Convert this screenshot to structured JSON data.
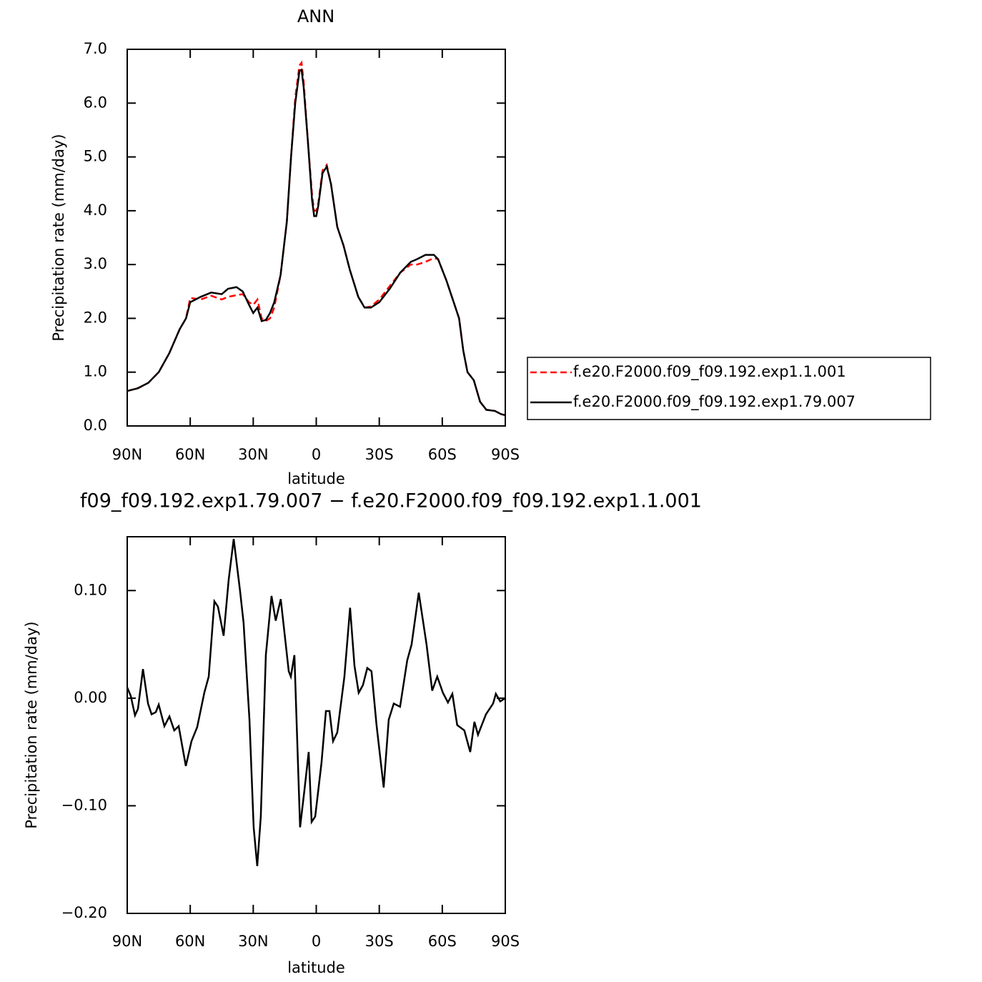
{
  "chart_data": [
    {
      "type": "line",
      "title": "ANN",
      "xlabel": "latitude",
      "ylabel": "Precipitation rate (mm/day)",
      "x": [
        90,
        85,
        80,
        75,
        70,
        65,
        62,
        60,
        55,
        50,
        45,
        42,
        38,
        35,
        32,
        30,
        28,
        26,
        24,
        22,
        20,
        17,
        14,
        12,
        10,
        8,
        7,
        6,
        4,
        2,
        1,
        0,
        -1,
        -3,
        -5,
        -7,
        -10,
        -13,
        -16,
        -20,
        -23,
        -26,
        -30,
        -35,
        -40,
        -45,
        -48,
        -52,
        -56,
        -58,
        -62,
        -65,
        -68,
        -70,
        -72,
        -75,
        -78,
        -81,
        -85,
        -88,
        -90
      ],
      "series": [
        {
          "name": "f.e20.F2000.f09_f09.192.exp1.1.001",
          "color": "#ff0000",
          "linestyle": "dashed",
          "values": [
            0.65,
            0.7,
            0.8,
            1.0,
            1.35,
            1.8,
            2.0,
            2.38,
            2.35,
            2.42,
            2.35,
            2.4,
            2.43,
            2.45,
            2.3,
            2.25,
            2.35,
            2.0,
            1.95,
            2.0,
            2.2,
            2.8,
            3.8,
            5.0,
            6.1,
            6.7,
            6.75,
            6.4,
            5.3,
            4.3,
            4.0,
            4.0,
            4.15,
            4.75,
            4.85,
            4.5,
            3.7,
            3.35,
            2.9,
            2.4,
            2.2,
            2.22,
            2.35,
            2.6,
            2.85,
            3.0,
            3.0,
            3.05,
            3.12,
            3.1,
            2.7,
            2.35,
            2.0,
            1.4,
            1.0,
            0.85,
            0.45,
            0.3,
            0.28,
            0.22,
            0.2
          ]
        },
        {
          "name": "f.e20.F2000.f09_f09.192.exp1.79.007",
          "color": "#000000",
          "linestyle": "solid",
          "values": [
            0.65,
            0.7,
            0.8,
            1.0,
            1.35,
            1.8,
            2.0,
            2.3,
            2.4,
            2.48,
            2.45,
            2.55,
            2.58,
            2.5,
            2.25,
            2.1,
            2.2,
            1.95,
            1.97,
            2.1,
            2.3,
            2.8,
            3.8,
            5.0,
            6.0,
            6.6,
            6.62,
            6.3,
            5.3,
            4.2,
            3.9,
            3.9,
            4.1,
            4.7,
            4.82,
            4.5,
            3.7,
            3.35,
            2.9,
            2.4,
            2.2,
            2.2,
            2.3,
            2.55,
            2.85,
            3.05,
            3.1,
            3.18,
            3.18,
            3.1,
            2.7,
            2.35,
            2.0,
            1.4,
            1.0,
            0.85,
            0.45,
            0.3,
            0.28,
            0.22,
            0.2
          ]
        }
      ],
      "xlim": [
        90,
        -90
      ],
      "xticks": [
        {
          "value": 90,
          "label": "90N"
        },
        {
          "value": 60,
          "label": "60N"
        },
        {
          "value": 30,
          "label": "30N"
        },
        0,
        {
          "value": -30,
          "label": "30S"
        },
        {
          "value": -60,
          "label": "60S"
        },
        {
          "value": -90,
          "label": "90S"
        }
      ],
      "ylim": [
        0,
        7
      ],
      "yticks": [
        {
          "value": 0,
          "label": "0.0"
        },
        {
          "value": 1,
          "label": "1.0"
        },
        {
          "value": 2,
          "label": "2.0"
        },
        {
          "value": 3,
          "label": "3.0"
        },
        {
          "value": 4,
          "label": "4.0"
        },
        {
          "value": 5,
          "label": "5.0"
        },
        {
          "value": 6,
          "label": "6.0"
        },
        {
          "value": 7,
          "label": "7.0"
        }
      ],
      "legend": "right"
    },
    {
      "type": "line",
      "title": "f09_f09.192.exp1.79.007 − f.e20.F2000.f09_f09.192.exp1.1.001",
      "xlabel": "latitude",
      "ylabel": "Precipitation rate (mm/day)",
      "x": [
        90,
        88.3,
        86.3,
        84.9,
        82.5,
        80.1,
        78.4,
        76.4,
        75,
        72.3,
        69.9,
        67.6,
        65.5,
        62.1,
        59.4,
        56.7,
        53.3,
        51.2,
        48.5,
        46.8,
        44.1,
        41.7,
        39.3,
        36.3,
        34.6,
        31.8,
        29.8,
        28.1,
        26.4,
        24,
        21.3,
        19.3,
        16.9,
        13.1,
        12.1,
        10.4,
        7.7,
        5.6,
        3.6,
        2.2,
        0.5,
        -2.5,
        -4.6,
        -6.3,
        -8,
        -10,
        -13.4,
        -16.1,
        -18.2,
        -20.2,
        -22.2,
        -24.3,
        -26.3,
        -28.7,
        -32.1,
        -34.5,
        -36.9,
        -39.9,
        -43.3,
        -45.4,
        -48.8,
        -52.5,
        -55.2,
        -57.6,
        -60.3,
        -62.7,
        -64.8,
        -67.1,
        -70.5,
        -73.3,
        -75.3,
        -77,
        -80.8,
        -84.2,
        -85.5,
        -87.6,
        -90
      ],
      "series": [
        {
          "color": "#000000",
          "linestyle": "solid",
          "values": [
            0.01,
            0.002,
            -0.016,
            -0.01,
            0.027,
            -0.005,
            -0.015,
            -0.013,
            -0.006,
            -0.026,
            -0.017,
            -0.03,
            -0.026,
            -0.063,
            -0.04,
            -0.027,
            0.005,
            0.02,
            0.09,
            0.085,
            0.058,
            0.11,
            0.148,
            0.1,
            0.07,
            -0.02,
            -0.12,
            -0.156,
            -0.11,
            0.04,
            0.095,
            0.072,
            0.092,
            0.025,
            0.02,
            0.04,
            -0.12,
            -0.085,
            -0.05,
            -0.115,
            -0.11,
            -0.06,
            -0.012,
            -0.012,
            -0.04,
            -0.032,
            0.02,
            0.084,
            0.03,
            0.005,
            0.012,
            0.028,
            0.025,
            -0.025,
            -0.083,
            -0.02,
            -0.005,
            -0.008,
            0.035,
            0.05,
            0.098,
            0.05,
            0.007,
            0.02,
            0.005,
            -0.004,
            0.004,
            -0.025,
            -0.03,
            -0.05,
            -0.022,
            -0.034,
            -0.015,
            -0.005,
            0.004,
            -0.003,
            0.0
          ]
        }
      ],
      "xlim": [
        90,
        -90
      ],
      "xticks": [
        {
          "value": 90,
          "label": "90N"
        },
        {
          "value": 60,
          "label": "60N"
        },
        {
          "value": 30,
          "label": "30N"
        },
        0,
        {
          "value": -30,
          "label": "30S"
        },
        {
          "value": -60,
          "label": "60S"
        },
        {
          "value": -90,
          "label": "90S"
        }
      ],
      "ylim": [
        -0.2,
        0.15
      ],
      "yticks": [
        {
          "value": -0.2,
          "label": "−0.20"
        },
        {
          "value": -0.1,
          "label": "−0.10"
        },
        {
          "value": 0,
          "label": "0.00"
        },
        {
          "value": 0.1,
          "label": "0.10"
        }
      ]
    }
  ]
}
